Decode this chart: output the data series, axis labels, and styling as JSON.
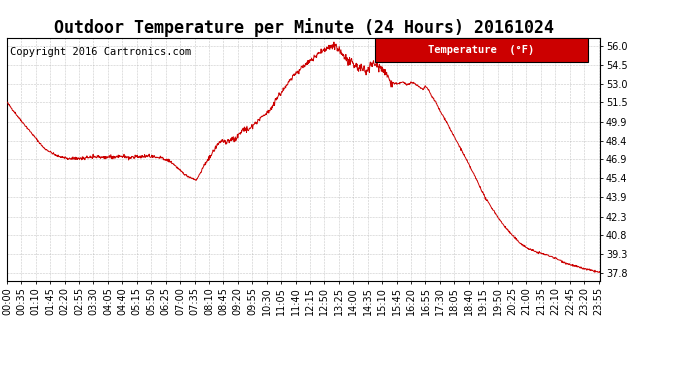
{
  "title": "Outdoor Temperature per Minute (24 Hours) 20161024",
  "copyright": "Copyright 2016 Cartronics.com",
  "legend_label": "Temperature  (°F)",
  "legend_bg": "#cc0000",
  "legend_text_color": "#ffffff",
  "line_color": "#cc0000",
  "background_color": "#ffffff",
  "grid_color": "#b0b0b0",
  "yticks": [
    37.8,
    39.3,
    40.8,
    42.3,
    43.9,
    45.4,
    46.9,
    48.4,
    49.9,
    51.5,
    53.0,
    54.5,
    56.0
  ],
  "ymin": 37.1,
  "ymax": 56.7,
  "num_minutes": 1440,
  "title_fontsize": 12,
  "copyright_fontsize": 7.5,
  "tick_fontsize": 7,
  "xtick_interval": 35,
  "ctrl_points": [
    [
      0,
      51.5
    ],
    [
      30,
      50.2
    ],
    [
      60,
      49.0
    ],
    [
      90,
      47.8
    ],
    [
      120,
      47.2
    ],
    [
      150,
      46.95
    ],
    [
      180,
      46.95
    ],
    [
      200,
      47.05
    ],
    [
      220,
      47.1
    ],
    [
      240,
      47.05
    ],
    [
      260,
      47.1
    ],
    [
      280,
      47.15
    ],
    [
      300,
      47.0
    ],
    [
      315,
      47.1
    ],
    [
      330,
      47.15
    ],
    [
      345,
      47.2
    ],
    [
      360,
      47.1
    ],
    [
      375,
      47.0
    ],
    [
      390,
      46.85
    ],
    [
      405,
      46.5
    ],
    [
      420,
      46.0
    ],
    [
      435,
      45.6
    ],
    [
      455,
      45.3
    ],
    [
      460,
      45.25
    ],
    [
      480,
      46.5
    ],
    [
      500,
      47.5
    ],
    [
      510,
      48.1
    ],
    [
      520,
      48.4
    ],
    [
      535,
      48.3
    ],
    [
      545,
      48.6
    ],
    [
      555,
      48.5
    ],
    [
      565,
      49.0
    ],
    [
      575,
      49.4
    ],
    [
      585,
      49.2
    ],
    [
      595,
      49.6
    ],
    [
      610,
      50.0
    ],
    [
      625,
      50.5
    ],
    [
      640,
      51.0
    ],
    [
      655,
      51.8
    ],
    [
      670,
      52.5
    ],
    [
      685,
      53.2
    ],
    [
      700,
      53.8
    ],
    [
      715,
      54.3
    ],
    [
      730,
      54.7
    ],
    [
      745,
      55.1
    ],
    [
      760,
      55.5
    ],
    [
      770,
      55.7
    ],
    [
      780,
      55.9
    ],
    [
      785,
      56.0
    ],
    [
      790,
      55.8
    ],
    [
      795,
      56.0
    ],
    [
      800,
      55.9
    ],
    [
      805,
      55.7
    ],
    [
      810,
      55.5
    ],
    [
      815,
      55.3
    ],
    [
      820,
      55.0
    ],
    [
      830,
      54.7
    ],
    [
      840,
      54.5
    ],
    [
      850,
      54.3
    ],
    [
      860,
      54.2
    ],
    [
      870,
      54.0
    ],
    [
      880,
      54.4
    ],
    [
      890,
      54.6
    ],
    [
      900,
      54.4
    ],
    [
      910,
      54.2
    ],
    [
      920,
      53.8
    ],
    [
      930,
      53.2
    ],
    [
      940,
      53.0
    ],
    [
      950,
      53.0
    ],
    [
      960,
      53.1
    ],
    [
      970,
      52.9
    ],
    [
      980,
      53.1
    ],
    [
      990,
      53.0
    ],
    [
      1000,
      52.7
    ],
    [
      1010,
      52.5
    ],
    [
      1015,
      52.8
    ],
    [
      1020,
      52.6
    ],
    [
      1025,
      52.3
    ],
    [
      1030,
      52.0
    ],
    [
      1040,
      51.5
    ],
    [
      1050,
      50.8
    ],
    [
      1065,
      50.0
    ],
    [
      1080,
      49.0
    ],
    [
      1100,
      47.8
    ],
    [
      1120,
      46.5
    ],
    [
      1140,
      45.2
    ],
    [
      1160,
      43.8
    ],
    [
      1180,
      42.8
    ],
    [
      1200,
      41.8
    ],
    [
      1220,
      41.0
    ],
    [
      1240,
      40.3
    ],
    [
      1260,
      39.8
    ],
    [
      1280,
      39.5
    ],
    [
      1300,
      39.3
    ],
    [
      1320,
      39.1
    ],
    [
      1340,
      38.8
    ],
    [
      1360,
      38.5
    ],
    [
      1380,
      38.3
    ],
    [
      1400,
      38.1
    ],
    [
      1420,
      37.95
    ],
    [
      1439,
      37.8
    ]
  ]
}
